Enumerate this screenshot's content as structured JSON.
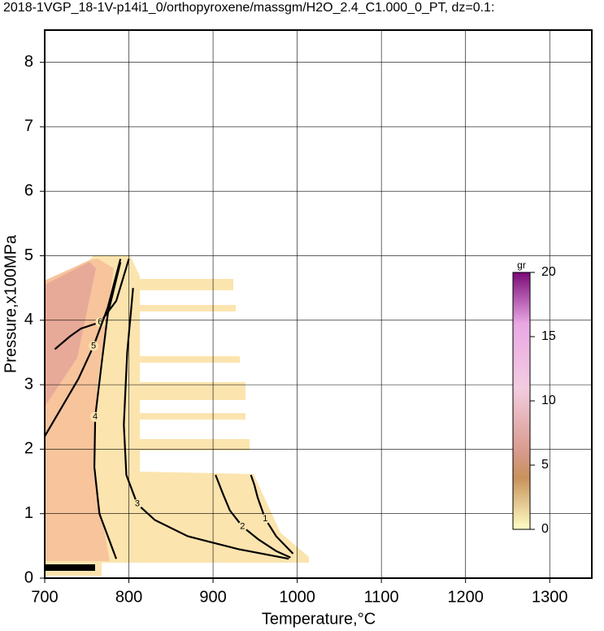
{
  "chart_data": {
    "type": "contour",
    "title": "2018-1VGP_18-1V-p14i1_0/orthopyroxene/massgm/H2O_2.4_C1.000_0_PT, dz=0.1:",
    "x_label": "Temperature,°C",
    "y_label": "Pressure,x100MPa",
    "xlim": [
      700,
      1350
    ],
    "ylim": [
      0,
      8.5
    ],
    "xticks": [
      700,
      800,
      900,
      1000,
      1100,
      1200,
      1300
    ],
    "yticks": [
      0,
      1,
      2,
      3,
      4,
      5,
      6,
      7,
      8
    ],
    "grid": true,
    "series": [
      {
        "level": 6,
        "color": "#000000",
        "x": [
          712,
          730,
          743,
          766,
          785,
          800
        ],
        "y": [
          3.55,
          3.75,
          3.87,
          3.97,
          4.3,
          4.95
        ]
      },
      {
        "level": 5,
        "color": "#000000",
        "x": [
          700,
          718,
          740,
          758,
          775,
          790
        ],
        "y": [
          2.2,
          2.6,
          3.09,
          3.6,
          4.2,
          4.95
        ]
      },
      {
        "level": 4,
        "color": "#000000",
        "x": [
          790,
          775,
          768,
          760,
          759,
          765,
          785
        ],
        "y": [
          4.9,
          4.1,
          3.37,
          2.5,
          1.72,
          1.0,
          0.3
        ]
      },
      {
        "level": 3,
        "color": "#000000",
        "x": [
          805,
          798,
          794,
          797,
          810,
          831,
          870,
          930,
          990
        ],
        "y": [
          4.5,
          3.5,
          2.38,
          1.6,
          1.15,
          0.9,
          0.65,
          0.45,
          0.3
        ]
      },
      {
        "level": 2,
        "color": "#000000",
        "x": [
          903,
          912,
          920,
          935,
          954,
          975,
          992
        ],
        "y": [
          1.6,
          1.3,
          1.05,
          0.8,
          0.6,
          0.42,
          0.32
        ]
      },
      {
        "level": 1,
        "color": "#000000",
        "x": [
          945,
          949,
          953,
          962,
          975,
          995
        ],
        "y": [
          1.6,
          1.45,
          1.25,
          0.92,
          0.65,
          0.38
        ]
      }
    ],
    "colorbar": {
      "label": "gr",
      "lim": [
        0,
        20
      ],
      "ticks": [
        0,
        5,
        10,
        15,
        20
      ]
    }
  }
}
